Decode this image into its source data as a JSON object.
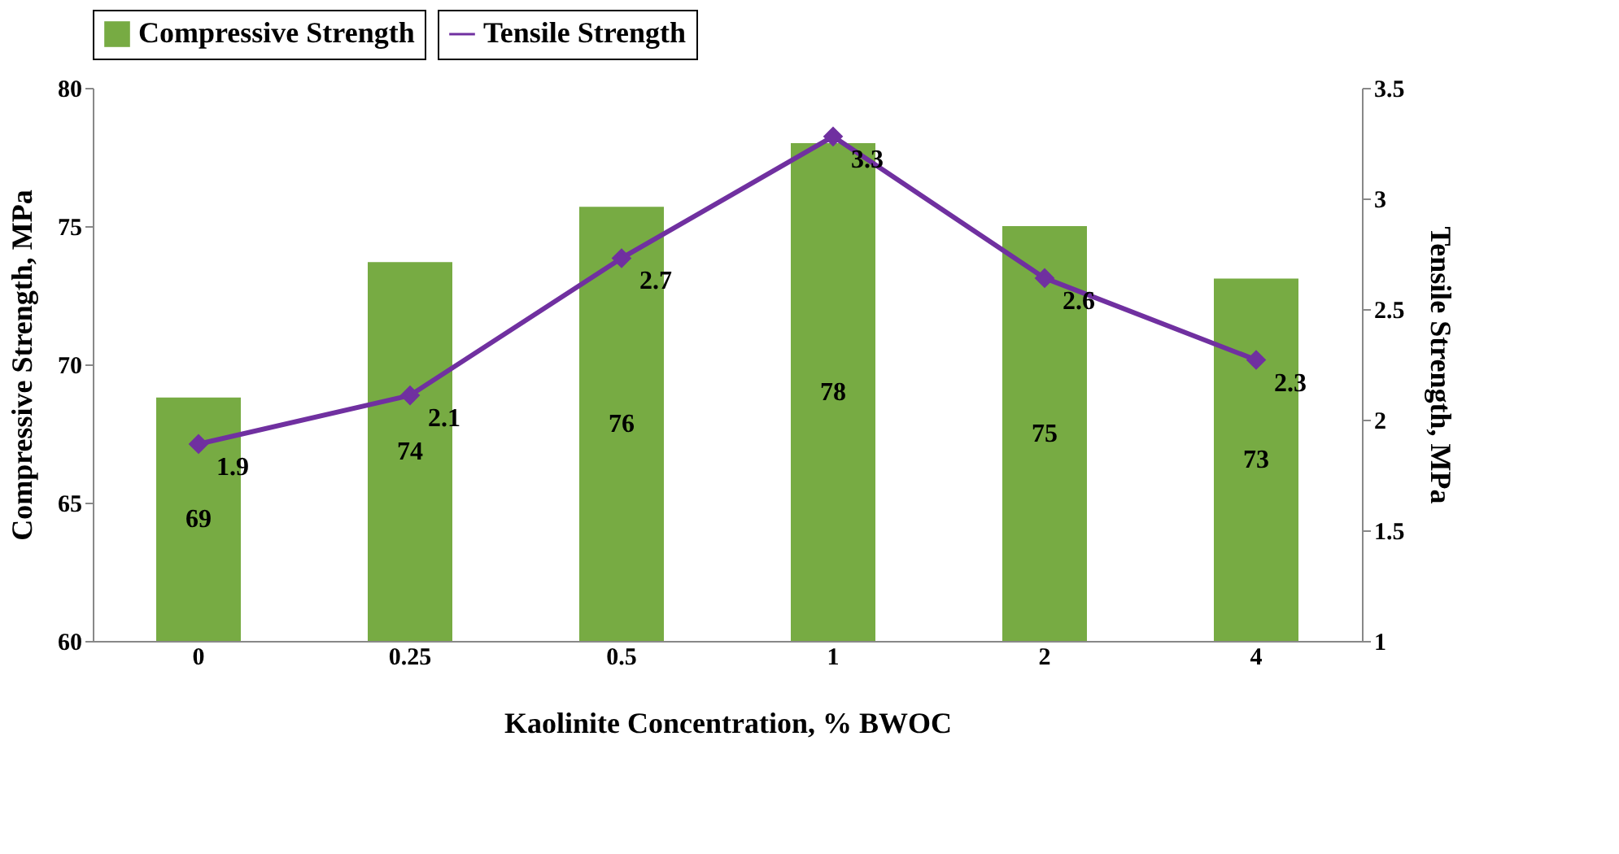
{
  "chart_data": {
    "type": "bar",
    "xlabel": "Kaolinite Concentration, % BWOC",
    "ylabel": "Compressive Strength, MPa",
    "y2label": "Tensile Strength, MPa",
    "categories": [
      "0",
      "0.25",
      "0.5",
      "1",
      "2",
      "4"
    ],
    "series": [
      {
        "name": "Compressive Strength",
        "color": "#77ab43",
        "values": [
          68.8,
          73.7,
          75.7,
          78.0,
          75.0,
          73.1
        ],
        "value_labels": [
          "69",
          "74",
          "76",
          "78",
          "75",
          "73"
        ]
      },
      {
        "name": "Tensile Strength",
        "type": "line",
        "axis": "y2",
        "color": "#7030a0",
        "marker": "diamond",
        "values": [
          1.89,
          2.11,
          2.73,
          3.28,
          2.64,
          2.27
        ],
        "value_labels": [
          "1.9",
          "2.1",
          "2.7",
          "3.3",
          "2.6",
          "2.3"
        ]
      }
    ],
    "ylim": [
      60,
      80
    ],
    "yticks": [
      60,
      65,
      70,
      75,
      80
    ],
    "y2lim": [
      1,
      3.5
    ],
    "y2ticks": [
      1,
      1.5,
      2,
      2.5,
      3,
      3.5
    ],
    "legend": "top",
    "grid": false
  }
}
